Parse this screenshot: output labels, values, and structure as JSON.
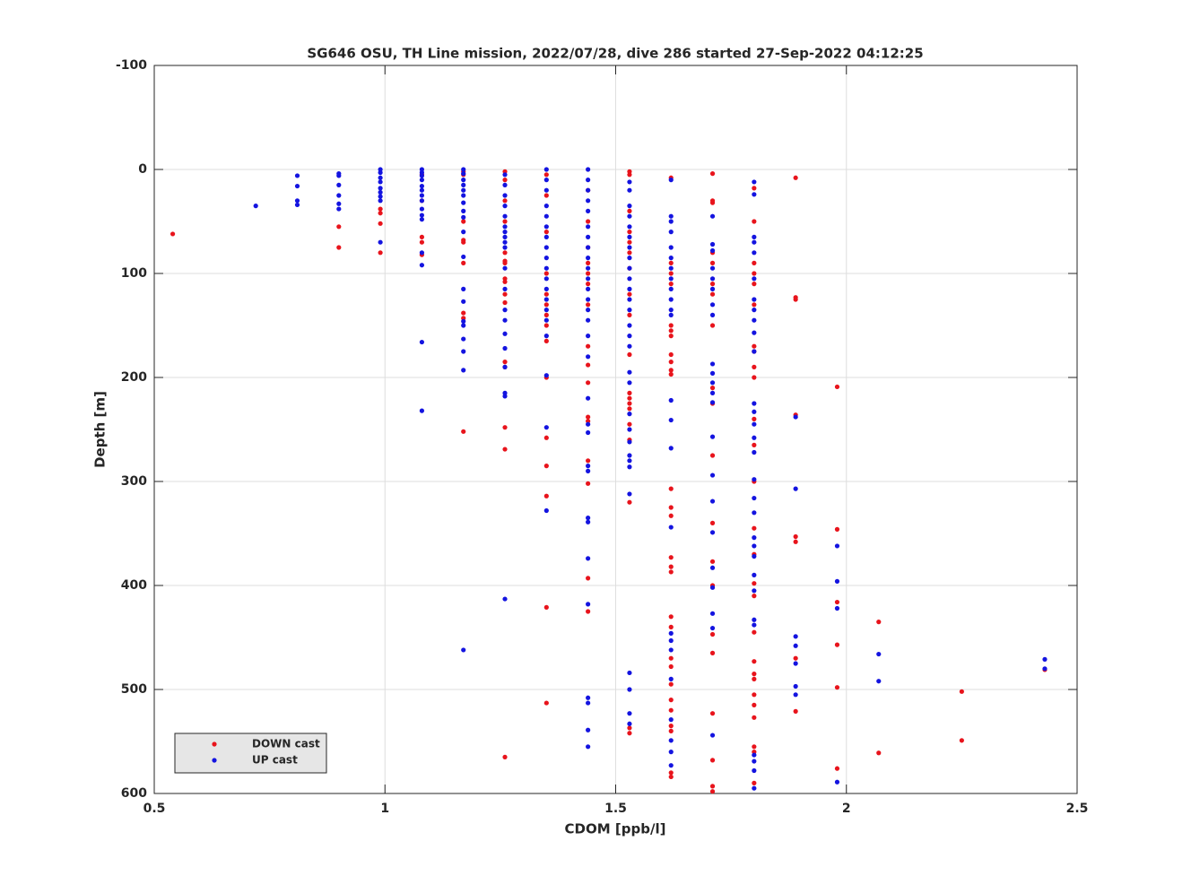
{
  "chart_data": {
    "type": "scatter",
    "title": "SG646 OSU, TH Line mission, 2022/07/28, dive 286 started 27-Sep-2022 04:12:25",
    "x_label": "CDOM [ppb/l]",
    "y_label": "Depth [m]",
    "xlim": [
      0.5,
      2.5
    ],
    "xticks": [
      0.5,
      1,
      1.5,
      2,
      2.5
    ],
    "ylim": [
      -100,
      600
    ],
    "yticks": [
      -100,
      0,
      100,
      200,
      300,
      400,
      500,
      600
    ],
    "y_reversed": true,
    "grid": true,
    "legend": "lower left",
    "series": [
      {
        "name": "DOWN cast",
        "color": "#e8141c",
        "groups": [
          {
            "x": 0.54,
            "y": [
              62
            ]
          },
          {
            "x": 0.9,
            "y": [
              55,
              75
            ]
          },
          {
            "x": 0.99,
            "y": [
              38,
              42,
              52,
              80
            ]
          },
          {
            "x": 1.08,
            "y": [
              5,
              30,
              65,
              70,
              82
            ]
          },
          {
            "x": 1.17,
            "y": [
              2,
              5,
              50,
              68,
              70,
              90,
              138,
              143,
              252
            ]
          },
          {
            "x": 1.26,
            "y": [
              2,
              10,
              30,
              50,
              80,
              88,
              90,
              105,
              108,
              120,
              128,
              185,
              190,
              248,
              269,
              565
            ]
          },
          {
            "x": 1.35,
            "y": [
              5,
              25,
              60,
              100,
              120,
              130,
              140,
              150,
              165,
              200,
              258,
              285,
              314,
              421,
              513
            ]
          },
          {
            "x": 1.44,
            "y": [
              20,
              50,
              75,
              90,
              100,
              110,
              130,
              170,
              188,
              205,
              238,
              242,
              280,
              302,
              393,
              425
            ]
          },
          {
            "x": 1.53,
            "y": [
              2,
              5,
              40,
              60,
              70,
              80,
              95,
              120,
              140,
              178,
              215,
              220,
              225,
              230,
              245,
              260,
              320,
              537,
              542
            ]
          },
          {
            "x": 1.62,
            "y": [
              8,
              90,
              100,
              110,
              150,
              155,
              160,
              178,
              185,
              193,
              197,
              307,
              325,
              333,
              373,
              382,
              387,
              430,
              440,
              470,
              478,
              495,
              510,
              520,
              535,
              540,
              580,
              584
            ]
          },
          {
            "x": 1.71,
            "y": [
              4,
              30,
              32,
              80,
              90,
              110,
              120,
              150,
              210,
              225,
              275,
              340,
              377,
              400,
              447,
              465,
              523,
              568,
              593,
              598
            ]
          },
          {
            "x": 1.8,
            "y": [
              18,
              50,
              90,
              100,
              110,
              130,
              170,
              175,
              190,
              200,
              240,
              265,
              300,
              345,
              370,
              398,
              410,
              445,
              473,
              485,
              490,
              505,
              515,
              527,
              555,
              560,
              590
            ]
          },
          {
            "x": 1.89,
            "y": [
              8,
              123,
              125,
              236,
              353,
              358,
              470,
              521
            ]
          },
          {
            "x": 1.98,
            "y": [
              209,
              346,
              416,
              457,
              498,
              576
            ]
          },
          {
            "x": 2.07,
            "y": [
              435,
              561
            ]
          },
          {
            "x": 2.25,
            "y": [
              502,
              549
            ]
          },
          {
            "x": 2.43,
            "y": [
              481
            ]
          }
        ]
      },
      {
        "name": "UP cast",
        "color": "#1414e0",
        "groups": [
          {
            "x": 0.72,
            "y": [
              35
            ]
          },
          {
            "x": 0.81,
            "y": [
              6,
              16,
              30,
              34
            ]
          },
          {
            "x": 0.9,
            "y": [
              4,
              6,
              15,
              25,
              33,
              38
            ]
          },
          {
            "x": 0.99,
            "y": [
              0,
              3,
              8,
              12,
              18,
              22,
              26,
              30,
              70
            ]
          },
          {
            "x": 1.08,
            "y": [
              0,
              3,
              6,
              10,
              16,
              20,
              25,
              30,
              38,
              44,
              48,
              80,
              92,
              166,
              232
            ]
          },
          {
            "x": 1.17,
            "y": [
              0,
              4,
              10,
              15,
              20,
              25,
              32,
              40,
              46,
              60,
              84,
              115,
              127,
              146,
              150,
              163,
              175,
              193,
              462
            ]
          },
          {
            "x": 1.26,
            "y": [
              5,
              15,
              25,
              35,
              45,
              55,
              60,
              65,
              70,
              75,
              95,
              115,
              135,
              145,
              158,
              172,
              190,
              215,
              218,
              413
            ]
          },
          {
            "x": 1.35,
            "y": [
              0,
              10,
              20,
              35,
              45,
              55,
              65,
              75,
              85,
              95,
              105,
              115,
              125,
              135,
              145,
              160,
              198,
              248,
              328
            ]
          },
          {
            "x": 1.44,
            "y": [
              0,
              10,
              20,
              30,
              40,
              55,
              65,
              75,
              85,
              95,
              105,
              115,
              125,
              135,
              145,
              160,
              180,
              220,
              245,
              253,
              285,
              290,
              335,
              339,
              374,
              418,
              508,
              513,
              539,
              555
            ]
          },
          {
            "x": 1.53,
            "y": [
              12,
              20,
              35,
              45,
              55,
              65,
              75,
              85,
              95,
              105,
              115,
              125,
              135,
              150,
              160,
              170,
              195,
              205,
              235,
              250,
              262,
              275,
              280,
              286,
              312,
              484,
              500,
              523,
              533
            ]
          },
          {
            "x": 1.62,
            "y": [
              10,
              45,
              50,
              60,
              75,
              85,
              95,
              105,
              115,
              125,
              135,
              140,
              222,
              241,
              268,
              344,
              446,
              453,
              462,
              490,
              529,
              549,
              560,
              573
            ]
          },
          {
            "x": 1.71,
            "y": [
              45,
              72,
              78,
              95,
              105,
              115,
              130,
              140,
              187,
              196,
              205,
              215,
              224,
              257,
              294,
              319,
              349,
              383,
              402,
              427,
              441,
              544
            ]
          },
          {
            "x": 1.8,
            "y": [
              12,
              24,
              65,
              70,
              80,
              105,
              125,
              135,
              145,
              157,
              175,
              225,
              233,
              245,
              258,
              272,
              298,
              316,
              330,
              354,
              362,
              372,
              390,
              405,
              433,
              438,
              563,
              569,
              578,
              595
            ]
          },
          {
            "x": 1.89,
            "y": [
              238,
              307,
              449,
              458,
              475,
              497,
              505
            ]
          },
          {
            "x": 1.98,
            "y": [
              362,
              396,
              422,
              589
            ]
          },
          {
            "x": 2.07,
            "y": [
              466,
              492
            ]
          },
          {
            "x": 2.43,
            "y": [
              471,
              480
            ]
          }
        ]
      }
    ]
  }
}
